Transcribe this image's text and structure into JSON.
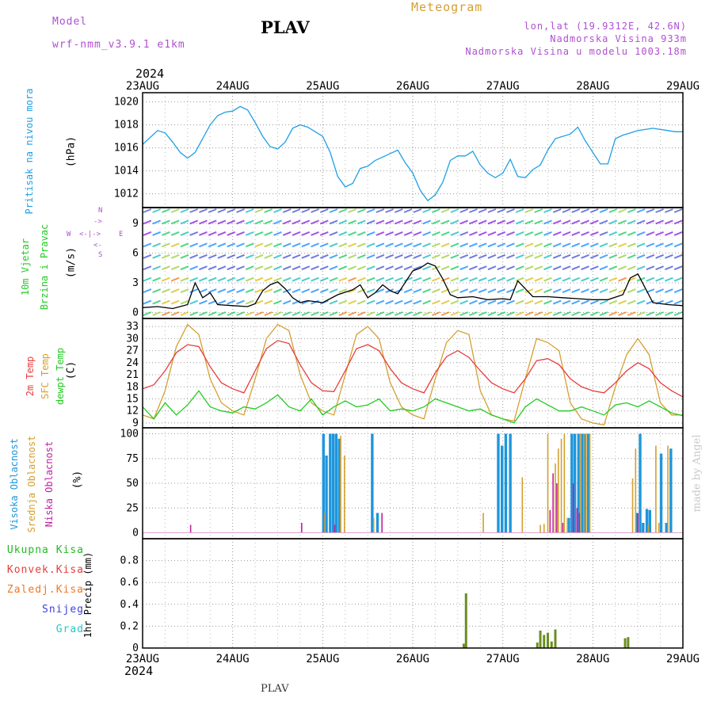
{
  "header": {
    "model_label": "Model",
    "model_name": "wrf-nmm_v3.9.1  e1km",
    "station": "PLAV",
    "meteogram": "Meteogram",
    "lonlat": "lon,lat (19.9312E, 42.6N)",
    "altitude": "Nadmorska Visina 933m",
    "model_altitude": "Nadmorska Visina u modelu 1003.18m",
    "year_top": "2024",
    "year_bottom": "2024",
    "footer_station": "PLAV",
    "watermark": "made by Angel"
  },
  "colors": {
    "pressure": "#1ea0e6",
    "wind_label": "#22cc22",
    "purple": "#b050d0",
    "t2m": "#e83c3c",
    "sfc": "#d4a030",
    "dew": "#22cc22",
    "high_cloud": "#1e96dc",
    "mid_cloud": "#d4a030",
    "low_cloud": "#c020a0",
    "total_precip": "#22bb22",
    "conv_precip": "#e83c3c",
    "grid_precip": "#f07820",
    "snow": "#4040e0",
    "graupel": "#20c8c8",
    "precip_bar": "#6b8e23"
  },
  "dates": [
    "23AUG",
    "24AUG",
    "25AUG",
    "26AUG",
    "27AUG",
    "28AUG",
    "29AUG"
  ],
  "panels": {
    "pressure": {
      "label": "Pritisak na nivou mora",
      "unit": "(hPa)"
    },
    "wind": {
      "label1": "10m Vjetar",
      "label2": "Brzina i Pravac",
      "unit": "(m/s)",
      "compass_s": "S",
      "compass_n": "N",
      "compass_w": "W",
      "compass_e": "E"
    },
    "temp": {
      "label1": "2m Temp",
      "label2": "SFC Temp",
      "label3": "dewpt Temp",
      "unit": "(C)"
    },
    "cloud": {
      "label1": "Visoka Oblacnost",
      "label2": "Srednja Oblacnost",
      "label3": "Niska Oblacnost",
      "unit": "(%)"
    },
    "precip": {
      "unit": "1hr Precip (mm)",
      "legend": [
        "Ukupna Kisa",
        "Konvek.Kisa",
        "Zaledj.Kisa",
        "Snijeg",
        "Grad"
      ]
    }
  },
  "chart_data": [
    {
      "type": "line",
      "name": "pressure",
      "xlim": [
        0,
        144
      ],
      "ylim": [
        1010.8,
        1020.8
      ],
      "yticks": [
        1012,
        1014,
        1016,
        1018,
        1020
      ],
      "grid": true,
      "series": [
        {
          "name": "",
          "x": [
            0,
            2,
            4,
            6,
            8,
            10,
            12,
            14,
            16,
            18,
            20,
            22,
            24,
            26,
            28,
            30,
            32,
            34,
            36,
            38,
            40,
            42,
            44,
            46,
            48,
            50,
            52,
            54,
            56,
            58,
            60,
            62,
            64,
            66,
            68,
            70,
            72,
            74,
            76,
            78,
            80,
            82,
            84,
            86,
            88,
            90,
            92,
            94,
            96,
            98,
            100,
            102,
            104,
            106,
            108,
            110,
            112,
            114,
            116,
            118,
            120,
            122,
            124,
            126,
            128,
            130,
            132,
            134,
            136,
            138,
            140,
            142,
            144
          ],
          "values": [
            1016.3,
            1016.9,
            1017.5,
            1017.3,
            1016.5,
            1015.6,
            1015.1,
            1015.6,
            1016.8,
            1018.0,
            1018.8,
            1019.1,
            1019.2,
            1019.6,
            1019.3,
            1018.2,
            1017.0,
            1016.1,
            1015.9,
            1016.5,
            1017.7,
            1018.0,
            1017.8,
            1017.4,
            1017.0,
            1015.6,
            1013.5,
            1012.6,
            1012.9,
            1014.2,
            1014.4,
            1014.9,
            1015.2,
            1015.5,
            1015.8,
            1014.7,
            1013.8,
            1012.3,
            1011.4,
            1011.9,
            1013.0,
            1014.9,
            1015.3,
            1015.3,
            1015.7,
            1014.5,
            1013.8,
            1013.4,
            1013.8,
            1015.0,
            1013.5,
            1013.4,
            1014.1,
            1014.5,
            1015.8,
            1016.8,
            1017.0,
            1017.2,
            1017.8,
            1016.6,
            1015.6,
            1014.6,
            1014.6,
            1016.8,
            1017.1,
            1017.3,
            1017.5,
            1017.6,
            1017.7,
            1017.6,
            1017.5,
            1017.4,
            1017.4
          ]
        }
      ]
    },
    {
      "type": "line",
      "name": "wind",
      "xlim": [
        0,
        144
      ],
      "ylim": [
        -0.6,
        10.6
      ],
      "yticks": [
        0,
        3,
        6,
        9
      ],
      "grid": true,
      "series": [
        {
          "name": "",
          "x": [
            0,
            4,
            8,
            12,
            14,
            16,
            18,
            20,
            24,
            28,
            30,
            32,
            34,
            36,
            38,
            40,
            42,
            44,
            48,
            52,
            56,
            58,
            60,
            62,
            64,
            66,
            68,
            72,
            74,
            76,
            78,
            80,
            82,
            84,
            88,
            92,
            96,
            98,
            100,
            104,
            108,
            112,
            116,
            120,
            124,
            128,
            130,
            132,
            136,
            140,
            144
          ],
          "values": [
            0.5,
            0.6,
            0.4,
            0.8,
            3.0,
            1.5,
            2.0,
            0.8,
            0.7,
            0.6,
            0.9,
            2.2,
            2.8,
            3.1,
            2.4,
            1.5,
            1.0,
            1.2,
            1.0,
            1.8,
            2.3,
            2.8,
            1.5,
            2.0,
            2.8,
            2.2,
            1.9,
            4.2,
            4.5,
            5.0,
            4.7,
            3.4,
            1.8,
            1.5,
            1.6,
            1.3,
            1.4,
            1.3,
            3.2,
            1.6,
            1.6,
            1.5,
            1.4,
            1.3,
            1.3,
            1.8,
            3.5,
            3.9,
            1.0,
            0.8,
            0.7
          ]
        }
      ]
    },
    {
      "type": "line",
      "name": "temperature",
      "xlim": [
        0,
        144
      ],
      "ylim": [
        7.8,
        35
      ],
      "yticks": [
        9,
        12,
        15,
        18,
        21,
        24,
        27,
        30,
        33
      ],
      "grid": true,
      "series": [
        {
          "name": "2m Temp",
          "x": [
            0,
            3,
            6,
            9,
            12,
            15,
            18,
            21,
            24,
            27,
            30,
            33,
            36,
            39,
            42,
            45,
            48,
            51,
            54,
            57,
            60,
            63,
            66,
            69,
            72,
            75,
            78,
            81,
            84,
            87,
            90,
            93,
            96,
            99,
            102,
            105,
            108,
            111,
            114,
            117,
            120,
            123,
            126,
            129,
            132,
            135,
            138,
            141,
            144
          ],
          "values": [
            17.5,
            18.5,
            22,
            26.5,
            28.5,
            28,
            23,
            19,
            17.5,
            16.5,
            22,
            27.5,
            29.5,
            28.8,
            23.5,
            19,
            17,
            16.8,
            22,
            27.5,
            28.5,
            27,
            22.5,
            19,
            17.5,
            16.5,
            21.5,
            25.5,
            27,
            25.3,
            22,
            19,
            17.5,
            16.5,
            20,
            24.5,
            25,
            23.5,
            20,
            18,
            17,
            16.5,
            19,
            22,
            24,
            22.5,
            19,
            17,
            15.5
          ]
        },
        {
          "name": "SFC Temp",
          "x": [
            0,
            3,
            6,
            9,
            12,
            15,
            18,
            21,
            24,
            27,
            30,
            33,
            36,
            39,
            42,
            45,
            48,
            51,
            54,
            57,
            60,
            63,
            66,
            69,
            72,
            75,
            78,
            81,
            84,
            87,
            90,
            93,
            96,
            99,
            102,
            105,
            108,
            111,
            114,
            117,
            120,
            123,
            126,
            129,
            132,
            135,
            138,
            141,
            144
          ],
          "values": [
            11,
            10,
            17,
            28,
            33.5,
            31,
            20,
            14,
            12,
            11,
            20,
            30,
            33.5,
            32,
            21,
            14,
            12,
            11,
            21,
            31,
            33,
            30,
            19,
            13,
            11,
            10,
            20,
            29,
            32,
            31,
            17,
            11,
            10,
            9.5,
            20,
            30,
            29,
            27,
            14,
            10,
            9,
            8.5,
            18,
            26,
            30,
            26,
            14,
            11,
            11
          ]
        },
        {
          "name": "dewpt Temp",
          "x": [
            0,
            3,
            6,
            9,
            12,
            15,
            18,
            21,
            24,
            27,
            30,
            33,
            36,
            39,
            42,
            45,
            48,
            51,
            54,
            57,
            60,
            63,
            66,
            69,
            72,
            75,
            78,
            81,
            84,
            87,
            90,
            93,
            96,
            99,
            102,
            105,
            108,
            111,
            114,
            117,
            120,
            123,
            126,
            129,
            132,
            135,
            138,
            141,
            144
          ],
          "values": [
            13,
            10,
            14,
            11,
            13.5,
            17,
            13,
            12,
            11.5,
            13,
            12.5,
            14,
            16,
            13,
            12,
            15,
            11,
            13,
            14.5,
            13,
            13.5,
            15,
            12,
            12.5,
            12,
            13,
            15,
            14,
            13,
            12,
            12.5,
            11,
            10,
            9,
            13,
            15,
            13.5,
            12,
            12,
            13,
            12,
            11,
            13.5,
            14,
            13,
            14.5,
            13,
            11.5,
            10.8
          ]
        }
      ]
    },
    {
      "type": "bar",
      "name": "cloud",
      "xlim": [
        0,
        144
      ],
      "ylim": [
        -6,
        106
      ],
      "yticks": [
        0,
        25,
        50,
        75,
        100
      ],
      "grid": true,
      "series": [
        {
          "name": "Visoka Oblacnost",
          "x": [
            48.2,
            49.0,
            50.0,
            50.8,
            51.6,
            52.4,
            61.2,
            62.6,
            94.8,
            95.8,
            96.8,
            98.0,
            113.6,
            114.4,
            115.2,
            116.2,
            117.2,
            117.8,
            118.8,
            131.8,
            132.6,
            133.4,
            134.4,
            135.2,
            138.2,
            139.6,
            140.8
          ],
          "values": [
            100,
            78,
            100,
            100,
            100,
            95,
            100,
            20,
            100,
            88,
            100,
            100,
            15,
            100,
            100,
            100,
            100,
            100,
            100,
            20,
            100,
            10,
            24,
            23,
            80,
            10,
            85
          ]
        },
        {
          "name": "Srednja Oblacnost",
          "x": [
            48.6,
            52.8,
            53.8,
            61.6,
            90.8,
            101.2,
            106.0,
            107.0,
            108.0,
            110.0,
            110.8,
            111.6,
            112.4,
            113.2,
            116.6,
            117.6,
            118.2,
            119.2,
            130.6,
            131.4,
            134.8,
            136.8,
            137.6,
            140.0
          ],
          "values": [
            20,
            98,
            78,
            15,
            20,
            56,
            8,
            9,
            100,
            70,
            85,
            95,
            100,
            15,
            100,
            100,
            100,
            100,
            55,
            85,
            8,
            88,
            10,
            88
          ]
        },
        {
          "name": "Niska Oblacnost",
          "x": [
            12.8,
            42.4,
            51.2,
            63.8,
            108.6,
            109.4,
            110.4,
            112.0,
            114.8,
            115.8,
            116.4,
            132.0
          ],
          "values": [
            8,
            10,
            8,
            20,
            23,
            60,
            50,
            10,
            50,
            25,
            20,
            20
          ]
        }
      ]
    },
    {
      "type": "bar",
      "name": "precipitation",
      "xlim": [
        0,
        144
      ],
      "ylim": [
        0,
        1
      ],
      "yticks": [
        0,
        0.2,
        0.4,
        0.6,
        0.8
      ],
      "grid": true,
      "series": [
        {
          "name": "Ukupna Kisa",
          "x": [
            85.6,
            86.2,
            105.2,
            106.0,
            107.0,
            108.0,
            109.0,
            110.0,
            128.6,
            129.4
          ],
          "values": [
            0.04,
            0.5,
            0.05,
            0.16,
            0.12,
            0.14,
            0.06,
            0.17,
            0.09,
            0.1
          ]
        }
      ]
    }
  ]
}
